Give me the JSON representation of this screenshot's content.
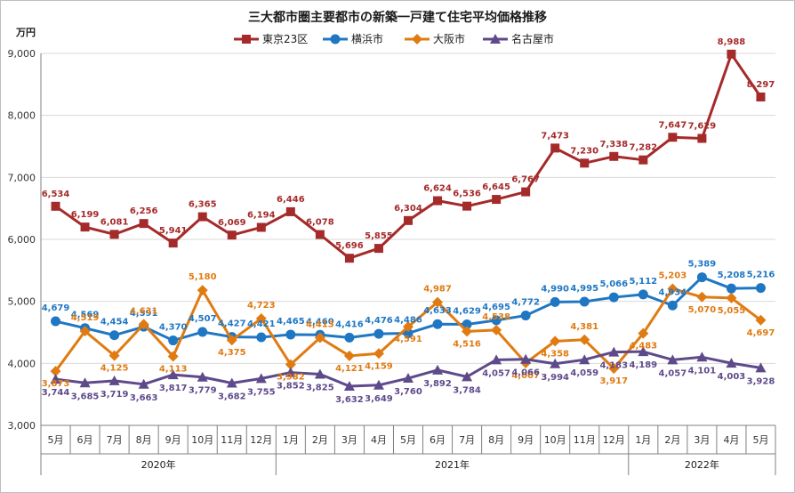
{
  "chart_data": {
    "type": "line",
    "title": "三大都市圏主要都市の新築一戸建て住宅平均価格推移",
    "ylabel": "万円",
    "ylim": [
      3000,
      9000
    ],
    "yticks": [
      "3,000",
      "4,000",
      "5,000",
      "6,000",
      "7,000",
      "8,000",
      "9,000"
    ],
    "ytick_values": [
      3000,
      4000,
      5000,
      6000,
      7000,
      8000,
      9000
    ],
    "grid": true,
    "legend_position": "top",
    "categories": [
      "5月",
      "6月",
      "7月",
      "8月",
      "9月",
      "10月",
      "11月",
      "12月",
      "1月",
      "2月",
      "3月",
      "4月",
      "5月",
      "6月",
      "7月",
      "8月",
      "9月",
      "10月",
      "11月",
      "12月",
      "1月",
      "2月",
      "3月",
      "4月",
      "5月"
    ],
    "years": [
      {
        "label": "2020年",
        "start": 0,
        "end": 7
      },
      {
        "label": "2021年",
        "start": 8,
        "end": 19
      },
      {
        "label": "2022年",
        "start": 20,
        "end": 24
      }
    ],
    "series": [
      {
        "name": "東京23区",
        "color": "#a52a2a",
        "marker": "square",
        "values": [
          6534,
          6199,
          6081,
          6256,
          5941,
          6365,
          6069,
          6194,
          6446,
          6078,
          5696,
          5855,
          6304,
          6624,
          6536,
          6645,
          6767,
          7473,
          7230,
          7338,
          7282,
          7647,
          7629,
          8988,
          8297
        ],
        "labels": [
          "6,534",
          "6,199",
          "6,081",
          "6,256",
          "5,941",
          "6,365",
          "6,069",
          "6,194",
          "6,446",
          "6,078",
          "5,696",
          "5,855",
          "6,304",
          "6,624",
          "6,536",
          "6,645",
          "6,767",
          "7,473",
          "7,230",
          "7,338",
          "7,282",
          "7,647",
          "7,629",
          "8,988",
          "8,297"
        ]
      },
      {
        "name": "横浜市",
        "color": "#1f77c4",
        "marker": "circle",
        "values": [
          4679,
          4569,
          4454,
          4591,
          4370,
          4507,
          4427,
          4421,
          4465,
          4460,
          4416,
          4476,
          4486,
          4633,
          4629,
          4695,
          4772,
          4990,
          4995,
          5066,
          5112,
          4934,
          5389,
          5208,
          5216
        ],
        "labels": [
          "4,679",
          "4,569",
          "4,454",
          "4,591",
          "4,370",
          "4,507",
          "4,427",
          "4,421",
          "4,465",
          "4,460",
          "4,416",
          "4,476",
          "4,486",
          "4,633",
          "4,629",
          "4,695",
          "4,772",
          "4,990",
          "4,995",
          "5,066",
          "5,112",
          "4,934",
          "5,389",
          "5,208",
          "5,216"
        ]
      },
      {
        "name": "大阪市",
        "color": "#e07b12",
        "marker": "diamond",
        "values": [
          3873,
          4519,
          4125,
          4631,
          4113,
          5180,
          4375,
          4723,
          3982,
          4413,
          4121,
          4159,
          4591,
          4987,
          4516,
          4538,
          4007,
          4358,
          4381,
          3917,
          4483,
          5203,
          5070,
          5055,
          4697
        ],
        "labels": [
          "3,873",
          "4,519",
          "4,125",
          "4,631",
          "4,113",
          "5,180",
          "4,375",
          "4,723",
          "3,982",
          "4,413",
          "4,121",
          "4,159",
          "4,591",
          "4,987",
          "4,516",
          "4,538",
          "4,007",
          "4,358",
          "4,381",
          "3,917",
          "4,483",
          "5,203",
          "5,070",
          "5,055",
          "4,697"
        ]
      },
      {
        "name": "名古屋市",
        "color": "#5e4a8b",
        "marker": "triangle",
        "values": [
          3744,
          3685,
          3719,
          3663,
          3817,
          3779,
          3682,
          3755,
          3852,
          3825,
          3632,
          3649,
          3760,
          3892,
          3784,
          4057,
          4066,
          3994,
          4059,
          4183,
          4189,
          4057,
          4101,
          4003,
          3928
        ],
        "labels": [
          "3,744",
          "3,685",
          "3,719",
          "3,663",
          "3,817",
          "3,779",
          "3,682",
          "3,755",
          "3,852",
          "3,825",
          "3,632",
          "3,649",
          "3,760",
          "3,892",
          "3,784",
          "4,057",
          "4,066",
          "3,994",
          "4,059",
          "4,183",
          "4,189",
          "4,057",
          "4,101",
          "4,003",
          "3,928"
        ]
      }
    ]
  }
}
